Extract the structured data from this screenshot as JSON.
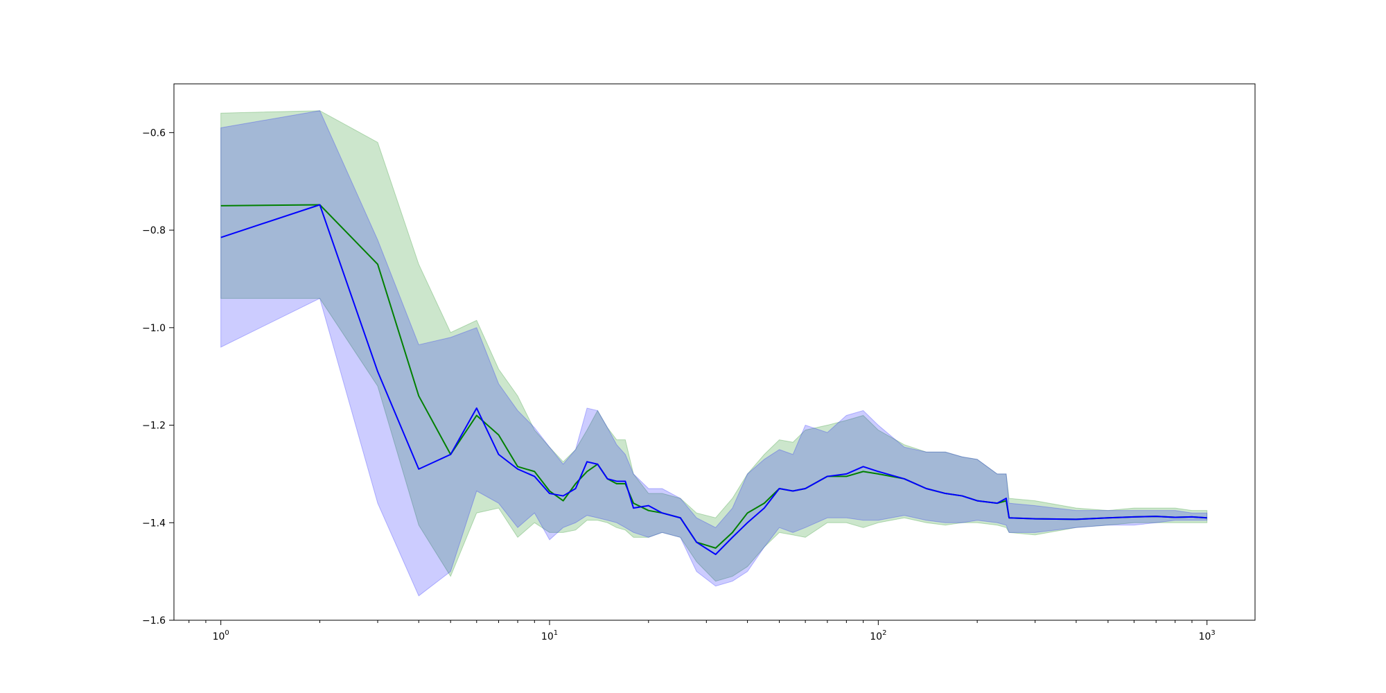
{
  "chart_data": {
    "type": "line",
    "title": "",
    "xlabel": "",
    "ylabel": "",
    "x_scale": "log",
    "xlim": [
      0.72,
      1400
    ],
    "ylim": [
      -1.6,
      -0.5
    ],
    "grid": false,
    "legend": "none",
    "x_ticks": [
      {
        "value": 1,
        "label": "10",
        "exp": "0"
      },
      {
        "value": 10,
        "label": "10",
        "exp": "1"
      },
      {
        "value": 100,
        "label": "10",
        "exp": "2"
      },
      {
        "value": 1000,
        "label": "10",
        "exp": "3"
      }
    ],
    "y_ticks": [
      {
        "value": -0.6,
        "label": "−0.6"
      },
      {
        "value": -0.8,
        "label": "−0.8"
      },
      {
        "value": -1.0,
        "label": "−1.0"
      },
      {
        "value": -1.2,
        "label": "−1.2"
      },
      {
        "value": -1.4,
        "label": "−1.4"
      },
      {
        "value": -1.6,
        "label": "−1.6"
      }
    ],
    "series": [
      {
        "color": "#008000",
        "band_color": "#008000",
        "band_opacity": 0.2,
        "x": [
          1,
          2,
          3,
          4,
          5,
          6,
          7,
          8,
          9,
          10,
          11,
          12,
          13,
          14,
          15,
          16,
          17,
          18,
          20,
          22,
          25,
          28,
          32,
          36,
          40,
          45,
          50,
          55,
          60,
          70,
          80,
          90,
          100,
          120,
          140,
          160,
          180,
          200,
          230,
          245,
          250,
          300,
          400,
          500,
          600,
          700,
          800,
          900,
          1000
        ],
        "y": [
          -0.75,
          -0.748,
          -0.87,
          -1.14,
          -1.26,
          -1.18,
          -1.22,
          -1.285,
          -1.295,
          -1.335,
          -1.355,
          -1.32,
          -1.295,
          -1.28,
          -1.31,
          -1.32,
          -1.32,
          -1.36,
          -1.375,
          -1.38,
          -1.39,
          -1.44,
          -1.452,
          -1.42,
          -1.38,
          -1.36,
          -1.33,
          -1.335,
          -1.33,
          -1.305,
          -1.305,
          -1.295,
          -1.3,
          -1.31,
          -1.33,
          -1.34,
          -1.345,
          -1.355,
          -1.36,
          -1.355,
          -1.39,
          -1.392,
          -1.393,
          -1.39,
          -1.388,
          -1.387,
          -1.389,
          -1.388,
          -1.39
        ],
        "upper": [
          -0.56,
          -0.555,
          -0.62,
          -0.87,
          -1.01,
          -0.985,
          -1.085,
          -1.14,
          -1.21,
          -1.245,
          -1.275,
          -1.25,
          -1.21,
          -1.17,
          -1.205,
          -1.23,
          -1.23,
          -1.3,
          -1.34,
          -1.34,
          -1.35,
          -1.38,
          -1.39,
          -1.35,
          -1.3,
          -1.26,
          -1.23,
          -1.235,
          -1.21,
          -1.2,
          -1.19,
          -1.18,
          -1.21,
          -1.24,
          -1.255,
          -1.255,
          -1.265,
          -1.27,
          -1.3,
          -1.3,
          -1.35,
          -1.355,
          -1.37,
          -1.375,
          -1.37,
          -1.37,
          -1.37,
          -1.375,
          -1.375
        ],
        "lower": [
          -0.94,
          -0.94,
          -1.12,
          -1.405,
          -1.51,
          -1.38,
          -1.37,
          -1.43,
          -1.4,
          -1.42,
          -1.42,
          -1.415,
          -1.395,
          -1.395,
          -1.4,
          -1.41,
          -1.415,
          -1.43,
          -1.43,
          -1.42,
          -1.43,
          -1.48,
          -1.52,
          -1.51,
          -1.49,
          -1.45,
          -1.42,
          -1.425,
          -1.43,
          -1.4,
          -1.4,
          -1.41,
          -1.4,
          -1.39,
          -1.4,
          -1.405,
          -1.4,
          -1.4,
          -1.405,
          -1.41,
          -1.42,
          -1.425,
          -1.41,
          -1.405,
          -1.4,
          -1.4,
          -1.4,
          -1.4,
          -1.4
        ]
      },
      {
        "color": "#0000ff",
        "band_color": "#0000ff",
        "band_opacity": 0.2,
        "x": [
          1,
          2,
          3,
          4,
          5,
          6,
          7,
          8,
          9,
          10,
          11,
          12,
          13,
          14,
          15,
          16,
          17,
          18,
          20,
          22,
          25,
          28,
          32,
          36,
          40,
          45,
          50,
          55,
          60,
          70,
          80,
          90,
          100,
          120,
          140,
          160,
          180,
          200,
          230,
          245,
          250,
          300,
          400,
          500,
          600,
          700,
          800,
          900,
          1000
        ],
        "y": [
          -0.815,
          -0.748,
          -1.09,
          -1.29,
          -1.26,
          -1.165,
          -1.26,
          -1.29,
          -1.305,
          -1.34,
          -1.345,
          -1.33,
          -1.275,
          -1.28,
          -1.31,
          -1.315,
          -1.315,
          -1.37,
          -1.365,
          -1.38,
          -1.39,
          -1.44,
          -1.465,
          -1.43,
          -1.4,
          -1.37,
          -1.33,
          -1.335,
          -1.33,
          -1.305,
          -1.3,
          -1.285,
          -1.295,
          -1.31,
          -1.33,
          -1.34,
          -1.345,
          -1.355,
          -1.36,
          -1.35,
          -1.39,
          -1.392,
          -1.393,
          -1.39,
          -1.388,
          -1.387,
          -1.389,
          -1.388,
          -1.39
        ],
        "upper": [
          -0.59,
          -0.555,
          -0.82,
          -1.035,
          -1.02,
          -1.0,
          -1.115,
          -1.17,
          -1.205,
          -1.245,
          -1.28,
          -1.25,
          -1.165,
          -1.17,
          -1.205,
          -1.24,
          -1.26,
          -1.3,
          -1.33,
          -1.33,
          -1.35,
          -1.39,
          -1.41,
          -1.37,
          -1.3,
          -1.27,
          -1.25,
          -1.26,
          -1.2,
          -1.215,
          -1.18,
          -1.17,
          -1.2,
          -1.245,
          -1.255,
          -1.255,
          -1.265,
          -1.27,
          -1.3,
          -1.3,
          -1.36,
          -1.365,
          -1.375,
          -1.375,
          -1.375,
          -1.375,
          -1.375,
          -1.38,
          -1.38
        ],
        "lower": [
          -1.04,
          -0.94,
          -1.36,
          -1.55,
          -1.5,
          -1.335,
          -1.36,
          -1.41,
          -1.38,
          -1.435,
          -1.41,
          -1.4,
          -1.385,
          -1.39,
          -1.395,
          -1.4,
          -1.41,
          -1.42,
          -1.43,
          -1.42,
          -1.43,
          -1.5,
          -1.53,
          -1.52,
          -1.5,
          -1.45,
          -1.41,
          -1.42,
          -1.41,
          -1.39,
          -1.39,
          -1.395,
          -1.395,
          -1.385,
          -1.395,
          -1.4,
          -1.4,
          -1.395,
          -1.4,
          -1.405,
          -1.42,
          -1.42,
          -1.41,
          -1.405,
          -1.405,
          -1.4,
          -1.395,
          -1.395,
          -1.395
        ]
      }
    ]
  }
}
